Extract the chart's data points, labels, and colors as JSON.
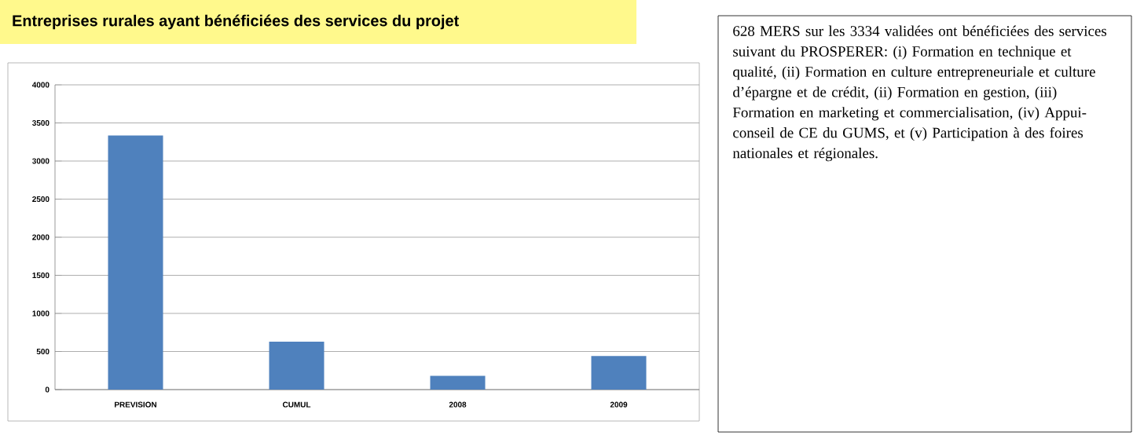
{
  "chart_data": {
    "type": "bar",
    "title": "Entreprises rurales ayant bénéficiées des services du projet",
    "categories": [
      "PREVISION",
      "CUMUL",
      "2008",
      "2009"
    ],
    "values": [
      3334,
      628,
      180,
      440
    ],
    "color": "#4f81bd",
    "ylim": [
      0,
      4000
    ],
    "yticks": [
      0,
      500,
      1000,
      1500,
      2000,
      2500,
      3000,
      3500,
      4000
    ],
    "grid": "y",
    "annotations": [
      "628 MERS sur les 3334 validées ont bénéficiées des services suivant du PROSPERER: (i) Formation en technique et qualité, (ii) Formation en culture entrepreneuriale et culture d’épargne et de crédit, (ii) Formation en gestion, (iii) Formation en marketing et commercialisation, (iv) Appui-conseil de CE du GUMS, et (v) Participation à des foires nationales et régionales."
    ]
  }
}
